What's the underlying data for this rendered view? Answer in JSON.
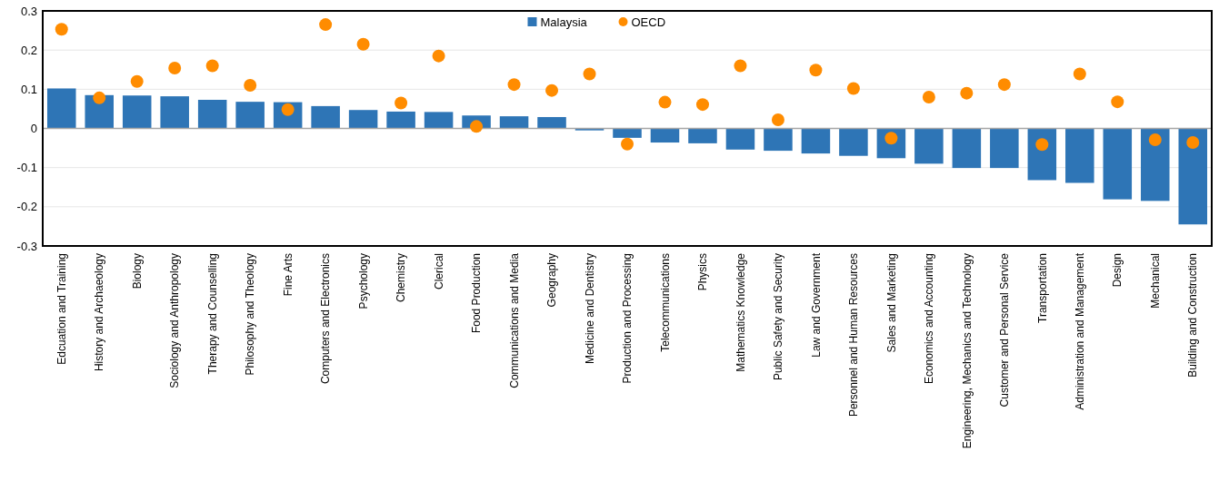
{
  "chart_data": {
    "type": "bar",
    "categories": [
      "Edcuation and Training",
      "History and Archaeology",
      "Biology",
      "Sociology and Anthropology",
      "Therapy and Counselling",
      "Philosophy and Theology",
      "Fine Arts",
      "Computers and Electronics",
      "Psychology",
      "Chemistry",
      "Clerical",
      "Food Production",
      "Communications and Media",
      "Geography",
      "Medicine and Dentistry",
      "Production and Processing",
      "Telecommunications",
      "Physics",
      "Mathematics Knowledge",
      "Public Safety and Security",
      "Law and Government",
      "Personnel and Human Resources",
      "Sales and Marketing",
      "Economics and Accounting",
      "Engineering, Mechanics and Technology",
      "Customer and Personal Service",
      "Transportation",
      "Administration and Management",
      "Design",
      "Mechanical",
      "Building and Construction"
    ],
    "series": [
      {
        "name": "Malaysia",
        "color": "#2e75b6",
        "values": [
          0.102,
          0.085,
          0.084,
          0.082,
          0.073,
          0.068,
          0.067,
          0.057,
          0.047,
          0.043,
          0.042,
          0.033,
          0.031,
          0.029,
          -0.005,
          -0.024,
          -0.036,
          -0.038,
          -0.054,
          -0.057,
          -0.064,
          -0.07,
          -0.076,
          -0.09,
          -0.101,
          -0.101,
          -0.132,
          -0.139,
          -0.181,
          -0.185,
          -0.245
        ]
      },
      {
        "name": "OECD",
        "type": "scatter",
        "color": "#ff8c00",
        "marker": "circle",
        "values": [
          0.253,
          0.078,
          0.12,
          0.154,
          0.16,
          0.11,
          0.048,
          0.265,
          0.215,
          0.065,
          0.185,
          0.005,
          0.112,
          0.097,
          0.139,
          -0.04,
          0.067,
          0.061,
          0.16,
          0.022,
          0.149,
          0.102,
          -0.025,
          0.08,
          0.09,
          0.112,
          -0.041,
          0.139,
          0.068,
          -0.029,
          -0.036
        ]
      }
    ],
    "ylim": [
      -0.3,
      0.3
    ],
    "yticks": [
      -0.3,
      -0.2,
      -0.1,
      0,
      0.1,
      0.2,
      0.3
    ],
    "grid": "y",
    "legend": "top"
  }
}
